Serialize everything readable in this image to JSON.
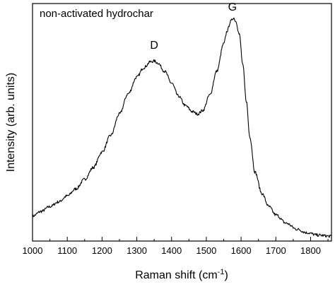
{
  "chart_data": {
    "type": "line",
    "title": "non-activated hydrochar",
    "xlabel": "Raman shift (cm",
    "xlabel_superscript": "-1",
    "xlabel_suffix": ")",
    "ylabel": "Intensity (arb. units)",
    "xlim": [
      1000,
      1860
    ],
    "ylim": [
      0,
      1
    ],
    "x_ticks": [
      1000,
      1100,
      1200,
      1300,
      1400,
      1500,
      1600,
      1700,
      1800
    ],
    "y_ticks_shown": false,
    "grid": false,
    "annotations": [
      {
        "text": "D",
        "x": 1350,
        "y": 0.81
      },
      {
        "text": "G",
        "x": 1575,
        "y": 0.97
      }
    ],
    "series": [
      {
        "color": "#000000",
        "x": [
          1000,
          1025,
          1050,
          1075,
          1100,
          1125,
          1150,
          1175,
          1200,
          1225,
          1250,
          1275,
          1300,
          1320,
          1340,
          1350,
          1360,
          1380,
          1400,
          1420,
          1440,
          1460,
          1475,
          1490,
          1510,
          1530,
          1550,
          1560,
          1570,
          1578,
          1585,
          1595,
          1605,
          1615,
          1625,
          1640,
          1660,
          1680,
          1700,
          1730,
          1760,
          1790,
          1820,
          1860
        ],
        "y": [
          0.105,
          0.125,
          0.145,
          0.165,
          0.19,
          0.22,
          0.26,
          0.31,
          0.375,
          0.445,
          0.535,
          0.62,
          0.69,
          0.73,
          0.755,
          0.758,
          0.75,
          0.715,
          0.665,
          0.61,
          0.57,
          0.545,
          0.535,
          0.55,
          0.615,
          0.715,
          0.83,
          0.885,
          0.925,
          0.94,
          0.925,
          0.87,
          0.74,
          0.59,
          0.44,
          0.29,
          0.2,
          0.145,
          0.11,
          0.075,
          0.05,
          0.035,
          0.025,
          0.02
        ]
      }
    ]
  }
}
